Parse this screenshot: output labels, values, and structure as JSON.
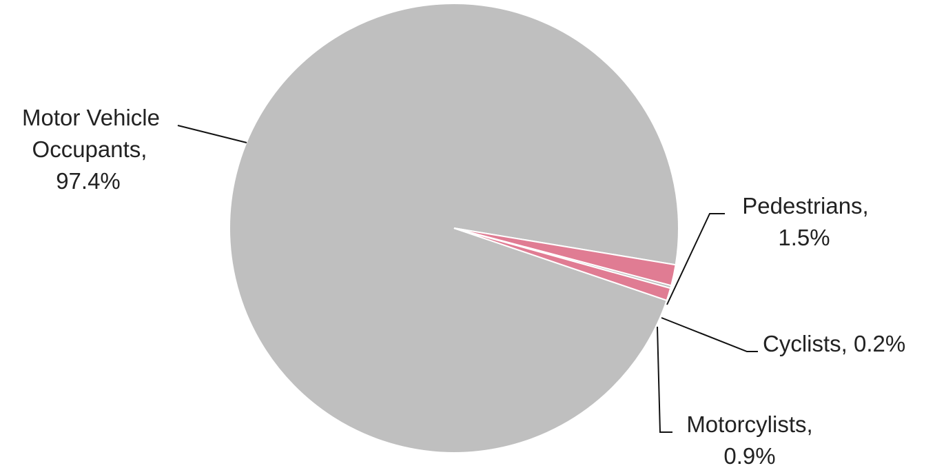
{
  "chart_data": {
    "type": "pie",
    "title": "",
    "slices": [
      {
        "name": "Motor Vehicle Occupants",
        "value": 97.4,
        "label_lines": [
          "Motor Vehicle",
          "Occupants,",
          "97.4%"
        ],
        "color": "#bfbfbf"
      },
      {
        "name": "Pedestrians",
        "value": 1.5,
        "label_lines": [
          "Pedestrians,",
          "1.5%"
        ],
        "color": "#e07c93"
      },
      {
        "name": "Cyclists",
        "value": 0.2,
        "label_lines": [
          "Cyclists, 0.2%"
        ],
        "color": "#bfbfbf"
      },
      {
        "name": "Motorcylists",
        "value": 0.9,
        "label_lines": [
          "Motorcylists,",
          "0.9%"
        ],
        "color": "#e07c93"
      }
    ],
    "slice_border_color": "#ffffff",
    "leader_line_color": "#111111",
    "label_color": "#222222"
  }
}
